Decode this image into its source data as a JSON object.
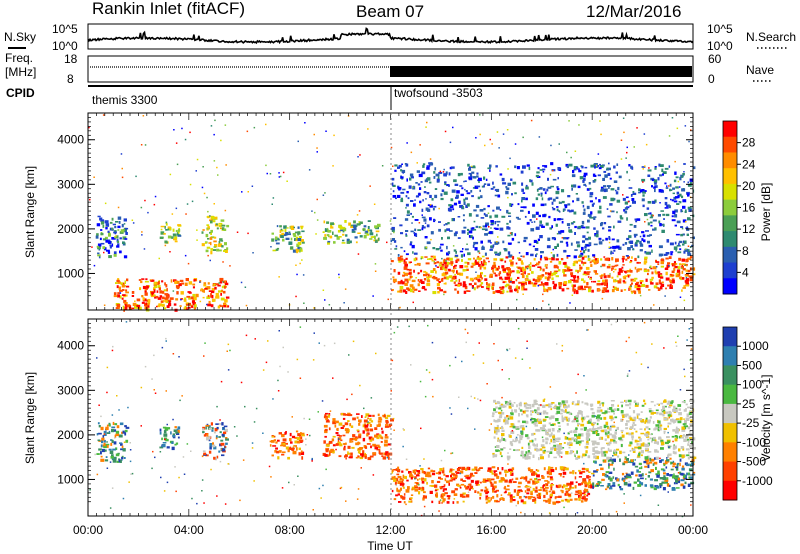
{
  "header": {
    "station": "Rankin Inlet (fitACF)",
    "beam": "Beam 07",
    "date": "12/Mar/2016"
  },
  "noise_panel": {
    "left_label": "N.Sky",
    "right_label": "N.Search",
    "left_ticks": [
      "10^5",
      "10^0"
    ],
    "right_ticks": [
      "10^5",
      "10^0"
    ]
  },
  "freq_panel": {
    "left_label_1": "Freq.",
    "left_label_2": "[MHz]",
    "right_label": "Nave",
    "left_ticks": [
      "18",
      "8"
    ],
    "right_ticks": [
      "60",
      "0"
    ]
  },
  "cpid": {
    "label": "CPID",
    "modes": [
      {
        "name": "themis 3300",
        "start_hour": 0
      },
      {
        "name": "twofsound -3503",
        "start_hour": 12
      }
    ]
  },
  "time_axis": {
    "label": "Time UT",
    "ticks": [
      "00:00",
      "04:00",
      "08:00",
      "12:00",
      "16:00",
      "20:00",
      "00:00"
    ]
  },
  "chart_data": [
    {
      "type": "heatmap",
      "name": "power",
      "xlabel": "Time UT",
      "ylabel": "Slant Range [km]",
      "xlim": [
        0,
        24
      ],
      "ylim": [
        180,
        4600
      ],
      "y_ticks": [
        "1000",
        "2000",
        "3000",
        "4000"
      ],
      "colorbar_label": "Power [dB]",
      "colorbar_ticks": [
        "28",
        "24",
        "20",
        "16",
        "12",
        "8",
        "4"
      ],
      "colorbar_colors": [
        "#ff0000",
        "#ff4a00",
        "#ff8c00",
        "#ffc000",
        "#d8e000",
        "#8ccc3c",
        "#4a9f55",
        "#2e8a70",
        "#2a5fb0",
        "#1e3fd0",
        "#0000ff"
      ],
      "regions": [
        {
          "t": [
            0.3,
            1.5
          ],
          "r": [
            1400,
            2300
          ],
          "level": "low-mid"
        },
        {
          "t": [
            2.8,
            3.6
          ],
          "r": [
            1700,
            2200
          ],
          "level": "mid"
        },
        {
          "t": [
            4.5,
            5.5
          ],
          "r": [
            1500,
            2300
          ],
          "level": "mid-high"
        },
        {
          "t": [
            7.2,
            8.5
          ],
          "r": [
            1500,
            2100
          ],
          "level": "mid"
        },
        {
          "t": [
            9.3,
            11.5
          ],
          "r": [
            1700,
            2200
          ],
          "level": "mid"
        },
        {
          "t": [
            1.0,
            5.5
          ],
          "r": [
            200,
            900
          ],
          "level": "high"
        },
        {
          "t": [
            12.0,
            24.0
          ],
          "r": [
            600,
            1400
          ],
          "level": "high"
        },
        {
          "t": [
            12.0,
            24.0
          ],
          "r": [
            1400,
            3500
          ],
          "level": "low"
        }
      ]
    },
    {
      "type": "heatmap",
      "name": "velocity",
      "xlabel": "Time UT",
      "ylabel": "Slant Range [km]",
      "xlim": [
        0,
        24
      ],
      "ylim": [
        180,
        4600
      ],
      "y_ticks": [
        "1000",
        "2000",
        "3000",
        "4000"
      ],
      "colorbar_label": "Velocity [m s^-1]",
      "colorbar_ticks": [
        "1000",
        "500",
        "100",
        "25",
        "-25",
        "-100",
        "-500",
        "-1000"
      ],
      "colorbar_colors": [
        "#1f3fb0",
        "#2e7fb0",
        "#3a9060",
        "#4ab840",
        "#c8c8c0",
        "#f0c000",
        "#ff8000",
        "#ff4000",
        "#ff0000"
      ],
      "regions": [
        {
          "t": [
            0.3,
            1.5
          ],
          "r": [
            1400,
            2300
          ],
          "level": "positive"
        },
        {
          "t": [
            2.8,
            3.6
          ],
          "r": [
            1700,
            2200
          ],
          "level": "positive"
        },
        {
          "t": [
            4.5,
            5.5
          ],
          "r": [
            1500,
            2300
          ],
          "level": "mixed"
        },
        {
          "t": [
            7.2,
            8.5
          ],
          "r": [
            1500,
            2100
          ],
          "level": "negative"
        },
        {
          "t": [
            9.3,
            12.0
          ],
          "r": [
            1500,
            2500
          ],
          "level": "negative"
        },
        {
          "t": [
            12.0,
            20.0
          ],
          "r": [
            500,
            1300
          ],
          "level": "negative"
        },
        {
          "t": [
            20.0,
            24.0
          ],
          "r": [
            800,
            1500
          ],
          "level": "positive"
        },
        {
          "t": [
            16.0,
            24.0
          ],
          "r": [
            1500,
            2800
          ],
          "level": "near-zero"
        }
      ]
    }
  ]
}
